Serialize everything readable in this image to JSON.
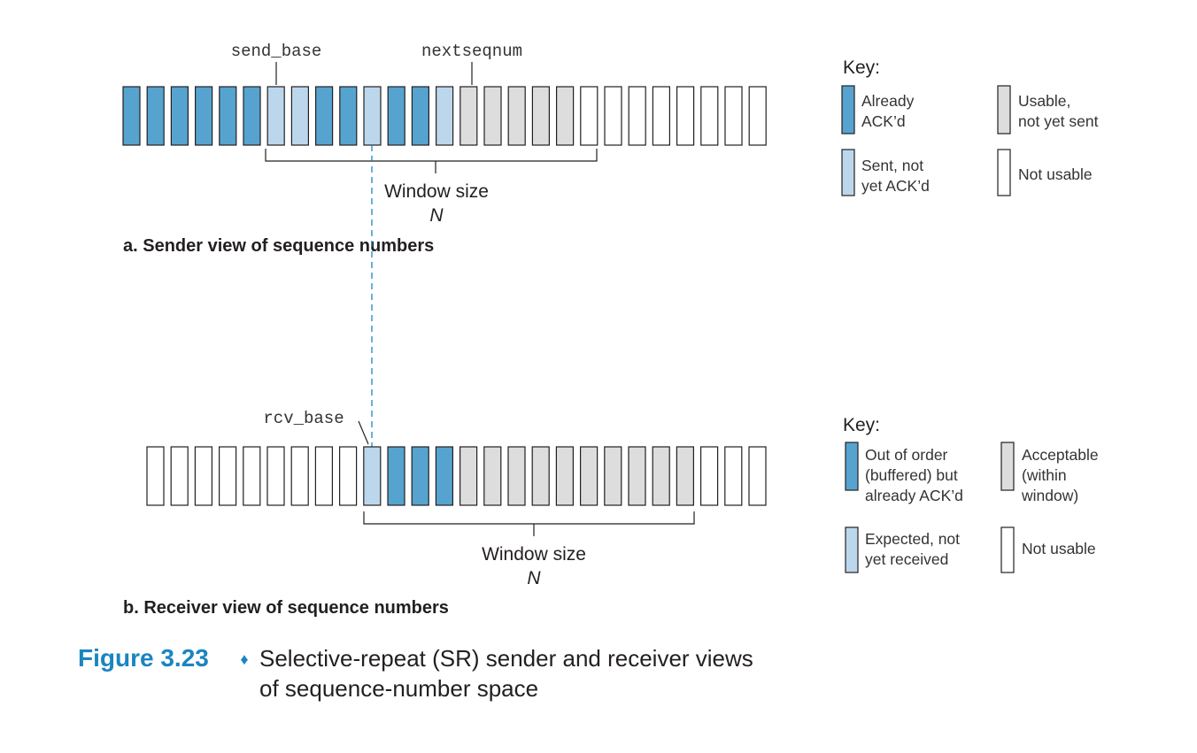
{
  "colors": {
    "already_acked": "#56a3cf",
    "sent_not_acked": "#bcd7ec",
    "usable_not_sent": "#dddddd",
    "not_usable": "#ffffff",
    "stroke": "#231f20",
    "accent": "#1a85c0"
  },
  "sender": {
    "send_base_label": "send_base",
    "nextseqnum_label": "nextseqnum",
    "cells": [
      "A",
      "A",
      "A",
      "A",
      "A",
      "A",
      "S",
      "S",
      "A",
      "A",
      "S",
      "A",
      "A",
      "S",
      "U",
      "U",
      "U",
      "U",
      "U",
      "N",
      "N",
      "N",
      "N",
      "N",
      "N",
      "N",
      "N"
    ],
    "window_label": "Window size",
    "window_var": "N",
    "caption": "a. Sender view of sequence numbers"
  },
  "sender_key": {
    "title": "Key:",
    "items": [
      {
        "state": "A",
        "lines": [
          "Already",
          "ACK’d"
        ]
      },
      {
        "state": "U",
        "lines": [
          "Usable,",
          "not yet sent"
        ]
      },
      {
        "state": "S",
        "lines": [
          "Sent, not",
          "yet ACK’d"
        ]
      },
      {
        "state": "N",
        "lines": [
          "Not usable"
        ]
      }
    ]
  },
  "receiver": {
    "rcv_base_label": "rcv_base",
    "cells": [
      "N",
      "N",
      "N",
      "N",
      "N",
      "N",
      "N",
      "N",
      "N",
      "E",
      "B",
      "B",
      "B",
      "U",
      "U",
      "U",
      "U",
      "U",
      "U",
      "U",
      "U",
      "U",
      "U",
      "N",
      "N",
      "N"
    ],
    "window_label": "Window size",
    "window_var": "N",
    "caption": "b. Receiver view of sequence numbers"
  },
  "receiver_key": {
    "title": "Key:",
    "items": [
      {
        "state": "B",
        "lines": [
          "Out of order",
          "(buffered) but",
          "already ACK’d"
        ]
      },
      {
        "state": "U",
        "lines": [
          "Acceptable",
          "(within",
          "window)"
        ]
      },
      {
        "state": "E",
        "lines": [
          "Expected, not",
          "yet received"
        ]
      },
      {
        "state": "N",
        "lines": [
          "Not usable"
        ]
      }
    ]
  },
  "figure": {
    "number": "Figure 3.23",
    "separator": "♦",
    "title_line1": "Selective-repeat (SR) sender and receiver views",
    "title_line2": "of sequence-number space"
  }
}
